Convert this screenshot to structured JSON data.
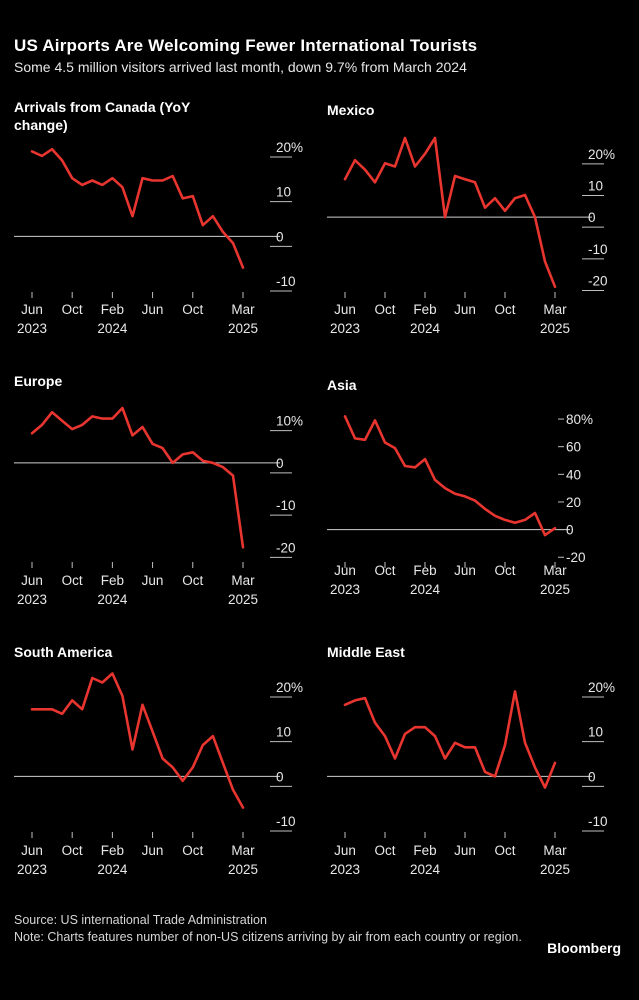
{
  "header": {
    "title": "US Airports Are Welcoming Fewer International Tourists",
    "subtitle": "Some 4.5 million visitors arrived last month, down 9.7% from March 2024"
  },
  "colors": {
    "line": "#e8352f",
    "zero": "#cfcfcf",
    "tick": "#bfbfbf"
  },
  "chart_data": [
    {
      "type": "line",
      "title": "Arrivals from Canada (YoY change)",
      "x_tick_labels": [
        [
          "Jun",
          "2023"
        ],
        [
          "Oct",
          ""
        ],
        [
          "Feb",
          "2024"
        ],
        [
          "Jun",
          ""
        ],
        [
          "Oct",
          ""
        ],
        [
          "Mar",
          "2025"
        ]
      ],
      "y_ticks": [
        20,
        10,
        0,
        -10
      ],
      "y_tick_labels": [
        "20%",
        "10",
        "0",
        "-10"
      ],
      "ylim": [
        -12,
        22
      ],
      "values": [
        19,
        18,
        19.5,
        17,
        13,
        11.5,
        12.5,
        11.5,
        13,
        11,
        4.5,
        13,
        12.5,
        12.5,
        13.5,
        8.5,
        9,
        2.5,
        4.5,
        1,
        -1.5,
        -7
      ]
    },
    {
      "type": "line",
      "title": "Mexico",
      "x_tick_labels": [
        [
          "Jun",
          "2023"
        ],
        [
          "Oct",
          ""
        ],
        [
          "Feb",
          "2024"
        ],
        [
          "Jun",
          ""
        ],
        [
          "Oct",
          ""
        ],
        [
          "Mar",
          "2025"
        ]
      ],
      "y_ticks": [
        20,
        10,
        0,
        -10,
        -20
      ],
      "y_tick_labels": [
        "20%",
        "10",
        "0",
        "-10",
        "-20"
      ],
      "ylim": [
        -23,
        25
      ],
      "values": [
        12,
        18,
        15,
        11,
        17,
        16,
        25,
        16,
        20,
        25,
        0,
        13,
        12,
        11,
        3,
        6,
        2,
        6,
        7,
        0,
        -14,
        -22
      ]
    },
    {
      "type": "line",
      "title": "Europe",
      "x_tick_labels": [
        [
          "Jun",
          "2023"
        ],
        [
          "Oct",
          ""
        ],
        [
          "Feb",
          "2024"
        ],
        [
          "Jun",
          ""
        ],
        [
          "Oct",
          ""
        ],
        [
          "Mar",
          "2025"
        ]
      ],
      "y_ticks": [
        10,
        0,
        -10,
        -20
      ],
      "y_tick_labels": [
        "10%",
        "0",
        "-10",
        "-20"
      ],
      "ylim": [
        -23,
        13
      ],
      "values": [
        7,
        9,
        12,
        10,
        8,
        9,
        11,
        10.5,
        10.5,
        13,
        6.5,
        8.5,
        4.5,
        3.5,
        0,
        2,
        2.5,
        0.5,
        0,
        -1,
        -3,
        -20
      ]
    },
    {
      "type": "line",
      "title": "Asia",
      "x_tick_labels": [
        [
          "Jun",
          "2023"
        ],
        [
          "Oct",
          ""
        ],
        [
          "Feb",
          "2024"
        ],
        [
          "Jun",
          ""
        ],
        [
          "Oct",
          ""
        ],
        [
          "Mar",
          "2025"
        ]
      ],
      "y_ticks": [
        80,
        60,
        40,
        20,
        0,
        -20
      ],
      "y_tick_labels": [
        "80%",
        "60",
        "40",
        "20",
        "0",
        "-20"
      ],
      "ylim": [
        -22,
        88
      ],
      "values": [
        82,
        66,
        65,
        79,
        63,
        59,
        46,
        45,
        51,
        36,
        30,
        26,
        24,
        21,
        15,
        10,
        7,
        5,
        7,
        12,
        -4,
        1
      ]
    },
    {
      "type": "line",
      "title": "South America",
      "x_tick_labels": [
        [
          "Jun",
          "2023"
        ],
        [
          "Oct",
          ""
        ],
        [
          "Feb",
          "2024"
        ],
        [
          "Jun",
          ""
        ],
        [
          "Oct",
          ""
        ],
        [
          "Mar",
          "2025"
        ]
      ],
      "y_ticks": [
        20,
        10,
        0,
        -10
      ],
      "y_tick_labels": [
        "20%",
        "10",
        "0",
        "-10"
      ],
      "ylim": [
        -12,
        22
      ],
      "values": [
        15,
        15,
        15,
        14,
        17,
        15,
        22,
        21,
        23,
        18,
        6,
        16,
        10,
        4,
        2,
        -1,
        2,
        7,
        9,
        3,
        -3,
        -7
      ]
    },
    {
      "type": "line",
      "title": "Middle East",
      "x_tick_labels": [
        [
          "Jun",
          "2023"
        ],
        [
          "Oct",
          ""
        ],
        [
          "Feb",
          "2024"
        ],
        [
          "Jun",
          ""
        ],
        [
          "Oct",
          ""
        ],
        [
          "Mar",
          "2025"
        ]
      ],
      "y_ticks": [
        20,
        10,
        0,
        -10
      ],
      "y_tick_labels": [
        "20%",
        "10",
        "0",
        "-10"
      ],
      "ylim": [
        -12,
        22
      ],
      "values": [
        16,
        17,
        17.5,
        12,
        9,
        4,
        9.5,
        11,
        11,
        9,
        4,
        7.5,
        6.5,
        6.5,
        1,
        0,
        7,
        19,
        7.5,
        2,
        -2.5,
        3
      ]
    }
  ],
  "footer": {
    "source": "Source: US international Trade Administration",
    "note": "Note: Charts features number of non-US citizens arriving by air from each country or region.",
    "brand": "Bloomberg"
  }
}
